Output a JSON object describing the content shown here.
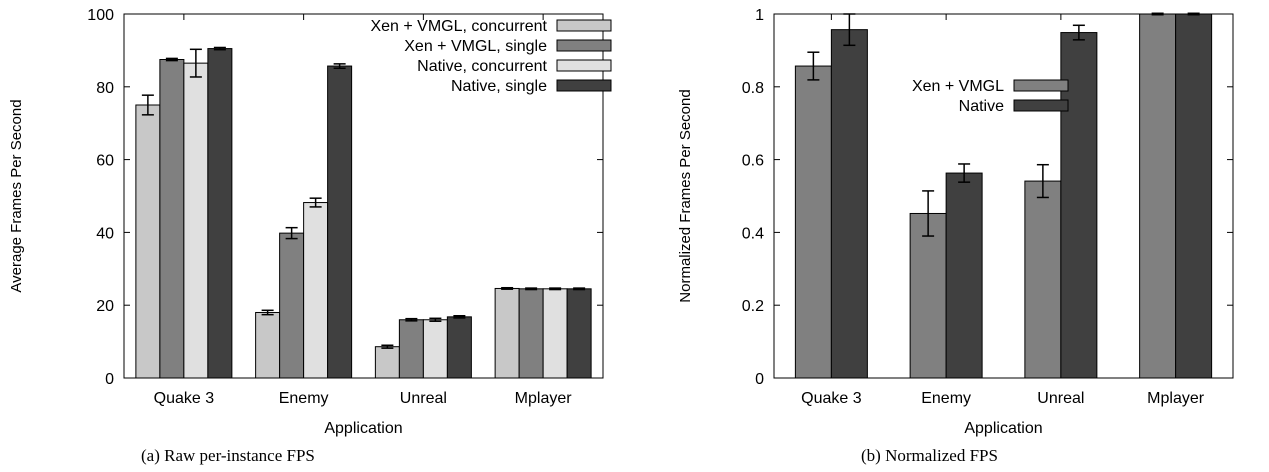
{
  "chart_data": [
    {
      "type": "bar",
      "caption": "(a) Raw per-instance FPS",
      "xlabel": "Application",
      "ylabel": "Average Frames Per Second",
      "ylim": [
        0,
        100
      ],
      "yticks": [
        "0",
        "20",
        "40",
        "60",
        "80",
        "100"
      ],
      "categories": [
        "Quake 3",
        "Enemy",
        "Unreal",
        "Mplayer"
      ],
      "legend_position": "top-right",
      "series": [
        {
          "name": "Xen + VMGL, concurrent",
          "color": "#c8c8c8",
          "values": [
            75.0,
            18.0,
            8.6,
            24.6
          ],
          "errors": [
            2.7,
            0.6,
            0.4,
            0.2
          ]
        },
        {
          "name": "Xen + VMGL, single",
          "color": "#808080",
          "values": [
            87.5,
            39.8,
            16.0,
            24.5
          ],
          "errors": [
            0.3,
            1.5,
            0.3,
            0.2
          ]
        },
        {
          "name": "Native, concurrent",
          "color": "#e0e0e0",
          "values": [
            86.5,
            48.2,
            16.0,
            24.5
          ],
          "errors": [
            3.8,
            1.2,
            0.4,
            0.2
          ]
        },
        {
          "name": "Native, single",
          "color": "#404040",
          "values": [
            90.5,
            85.7,
            16.8,
            24.5
          ],
          "errors": [
            0.3,
            0.6,
            0.3,
            0.2
          ]
        }
      ]
    },
    {
      "type": "bar",
      "caption": "(b) Normalized FPS",
      "xlabel": "Application",
      "ylabel": "Normalized Frames Per Second",
      "ylim": [
        0,
        1
      ],
      "yticks": [
        "0",
        "0.2",
        "0.4",
        "0.6",
        "0.8",
        "1"
      ],
      "categories": [
        "Quake 3",
        "Enemy",
        "Unreal",
        "Mplayer"
      ],
      "legend_position": "upper-middle",
      "series": [
        {
          "name": "Xen + VMGL",
          "color": "#808080",
          "values": [
            0.857,
            0.452,
            0.541,
            1.0
          ],
          "errors": [
            0.038,
            0.062,
            0.045,
            0.002
          ]
        },
        {
          "name": "Native",
          "color": "#404040",
          "values": [
            0.957,
            0.563,
            0.949,
            1.0
          ],
          "errors": [
            0.043,
            0.025,
            0.02,
            0.002
          ]
        }
      ]
    }
  ]
}
